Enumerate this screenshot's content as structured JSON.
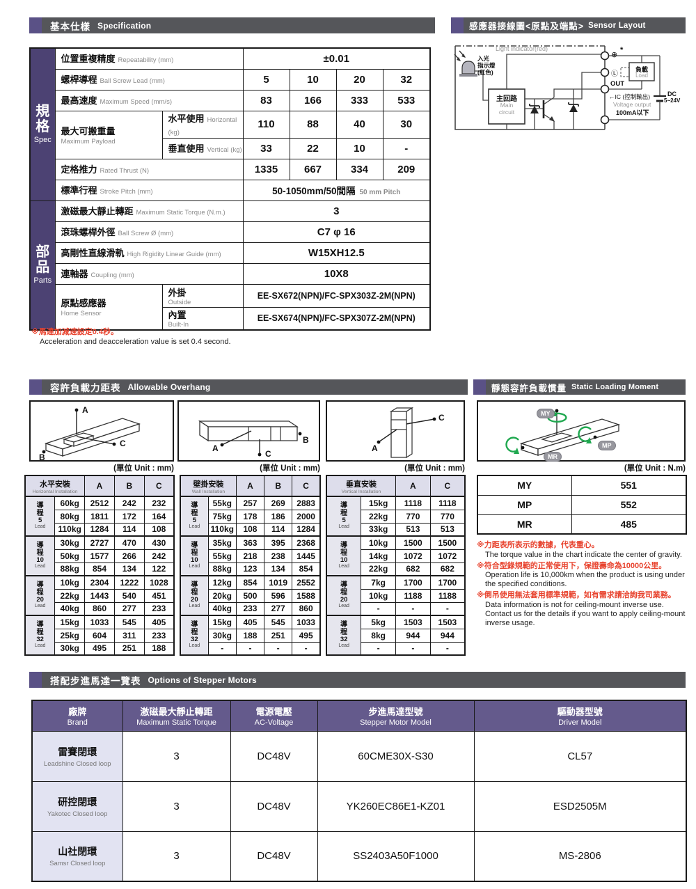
{
  "sections": {
    "spec": {
      "zh": "基本仕樣",
      "en": "Specification"
    },
    "sensor": {
      "zh": "感應器接線圖<原點及端點>",
      "en": "Sensor Layout"
    },
    "overhang": {
      "zh": "容許負載力距表",
      "en": "Allowable Overhang"
    },
    "moment": {
      "zh": "靜態容許負載慣量",
      "en": "Static Loading Moment"
    },
    "stepper": {
      "zh": "搭配步進馬達一覽表",
      "en": "Options of Stepper Motors"
    }
  },
  "spec_table": {
    "sidebar": [
      {
        "zh": "規格",
        "en": "Spec"
      },
      {
        "zh": "部品",
        "en": "Parts"
      }
    ],
    "repeatability": {
      "zh": "位置重複精度",
      "en": "Repeatability (mm)",
      "value": "±0.01"
    },
    "lead": {
      "zh": "螺桿導程",
      "en": "Ball Screw Lead (mm)",
      "values": [
        "5",
        "10",
        "20",
        "32"
      ]
    },
    "speed": {
      "zh": "最高速度",
      "en": "Maximum Speed (mm/s)",
      "values": [
        "83",
        "166",
        "333",
        "533"
      ]
    },
    "payload": {
      "zh": "最大可搬重量",
      "en": "Maximum Payload",
      "horizontal": {
        "zh": "水平使用",
        "en": "Horizontal (kg)",
        "values": [
          "110",
          "88",
          "40",
          "30"
        ]
      },
      "vertical": {
        "zh": "垂直使用",
        "en": "Vertical (kg)",
        "values": [
          "33",
          "22",
          "10",
          "-"
        ]
      }
    },
    "thrust": {
      "zh": "定格推力",
      "en": "Rated Thrust (N)",
      "values": [
        "1335",
        "667",
        "334",
        "209"
      ]
    },
    "stroke": {
      "zh": "標準行程",
      "en": "Stroke Pitch (mm)",
      "value": "50-1050mm/50間隔",
      "value_en": "50 mm Pitch"
    },
    "torque": {
      "zh": "激磁最大靜止轉距",
      "en": "Maximum Static Torque (N.m.)",
      "value": "3"
    },
    "screw_od": {
      "zh": "滾珠螺桿外徑",
      "en": "Ball Screw Ø (mm)",
      "value": "C7 φ 16"
    },
    "guide": {
      "zh": "高剛性直線滑軌",
      "en": "High Rigidity Linear Guide (mm)",
      "value": "W15XH12.5"
    },
    "coupling": {
      "zh": "連軸器",
      "en": "Coupling (mm)",
      "value": "10X8"
    },
    "home_sensor": {
      "zh": "原點感應器",
      "en": "Home Sensor",
      "outside": {
        "zh": "外掛",
        "en": "Outside",
        "value": "EE-SX672(NPN)/FC-SPX303Z-2M(NPN)"
      },
      "builtin": {
        "zh": "內置",
        "en": "Built-In",
        "value": "EE-SX674(NPN)/FC-SPX307Z-2M(NPN)"
      }
    },
    "note": {
      "zh": "※馬達加減速設定0.4秒。",
      "en": "Acceleration and deacceleration value is set 0.4 second."
    }
  },
  "sensor_diagram": {
    "light_indicator": "Light indicator(red)",
    "input_lines": [
      "入光",
      "指示燈",
      "(紅色)"
    ],
    "main_circuit_zh": "主回路",
    "main_circuit_en1": "Main",
    "main_circuit_en2": "circuit",
    "load_zh": "負載",
    "load_en": "Load",
    "terminal_plus": "⊕",
    "terminal_star": "*",
    "terminal_l": "Ⓛ",
    "terminal_out": "OUT",
    "terminal_minus": "⊖",
    "ic_label": "←IC (控制輸出)",
    "voltage_output": "Voltage output",
    "current_limit": "100mA以下",
    "dc_label": "DC",
    "dc_voltage": "5~24V"
  },
  "overhang": {
    "unit_mm": "(單位 Unit : mm)",
    "lead_zh": "導程",
    "lead_en": "Lead",
    "tables": [
      {
        "title_zh": "水平安裝",
        "title_en": "Horizontal Installation",
        "cols": [
          "A",
          "B",
          "C"
        ],
        "groups": [
          {
            "lead": "5",
            "rows": [
              [
                "60kg",
                "2512",
                "242",
                "232"
              ],
              [
                "80kg",
                "1811",
                "172",
                "164"
              ],
              [
                "110kg",
                "1284",
                "114",
                "108"
              ]
            ]
          },
          {
            "lead": "10",
            "rows": [
              [
                "30kg",
                "2727",
                "470",
                "430"
              ],
              [
                "50kg",
                "1577",
                "266",
                "242"
              ],
              [
                "88kg",
                "854",
                "134",
                "122"
              ]
            ]
          },
          {
            "lead": "20",
            "rows": [
              [
                "10kg",
                "2304",
                "1222",
                "1028"
              ],
              [
                "22kg",
                "1443",
                "540",
                "451"
              ],
              [
                "40kg",
                "860",
                "277",
                "233"
              ]
            ]
          },
          {
            "lead": "32",
            "rows": [
              [
                "15kg",
                "1033",
                "545",
                "405"
              ],
              [
                "25kg",
                "604",
                "311",
                "233"
              ],
              [
                "30kg",
                "495",
                "251",
                "188"
              ]
            ]
          }
        ]
      },
      {
        "title_zh": "壁掛安裝",
        "title_en": "Wall Installation",
        "cols": [
          "A",
          "B",
          "C"
        ],
        "groups": [
          {
            "lead": "5",
            "rows": [
              [
                "55kg",
                "257",
                "269",
                "2883"
              ],
              [
                "75kg",
                "178",
                "186",
                "2000"
              ],
              [
                "110kg",
                "108",
                "114",
                "1284"
              ]
            ]
          },
          {
            "lead": "10",
            "rows": [
              [
                "35kg",
                "363",
                "395",
                "2368"
              ],
              [
                "55kg",
                "218",
                "238",
                "1445"
              ],
              [
                "88kg",
                "123",
                "134",
                "854"
              ]
            ]
          },
          {
            "lead": "20",
            "rows": [
              [
                "12kg",
                "854",
                "1019",
                "2552"
              ],
              [
                "20kg",
                "500",
                "596",
                "1588"
              ],
              [
                "40kg",
                "233",
                "277",
                "860"
              ]
            ]
          },
          {
            "lead": "32",
            "rows": [
              [
                "15kg",
                "405",
                "545",
                "1033"
              ],
              [
                "30kg",
                "188",
                "251",
                "495"
              ],
              [
                "-",
                "-",
                "-",
                "-"
              ]
            ]
          }
        ]
      },
      {
        "title_zh": "垂直安裝",
        "title_en": "Vertical Installation",
        "cols": [
          "A",
          "C"
        ],
        "groups": [
          {
            "lead": "5",
            "rows": [
              [
                "15kg",
                "1118",
                "1118"
              ],
              [
                "22kg",
                "770",
                "770"
              ],
              [
                "33kg",
                "513",
                "513"
              ]
            ]
          },
          {
            "lead": "10",
            "rows": [
              [
                "10kg",
                "1500",
                "1500"
              ],
              [
                "14kg",
                "1072",
                "1072"
              ],
              [
                "22kg",
                "682",
                "682"
              ]
            ]
          },
          {
            "lead": "20",
            "rows": [
              [
                "7kg",
                "1700",
                "1700"
              ],
              [
                "10kg",
                "1188",
                "1188"
              ],
              [
                "-",
                "-",
                "-"
              ]
            ]
          },
          {
            "lead": "32",
            "rows": [
              [
                "5kg",
                "1503",
                "1503"
              ],
              [
                "8kg",
                "944",
                "944"
              ],
              [
                "-",
                "-",
                "-"
              ]
            ]
          }
        ]
      }
    ]
  },
  "moment": {
    "unit": "(單位 Unit : N.m)",
    "rows": [
      {
        "label": "MY",
        "value": "551"
      },
      {
        "label": "MP",
        "value": "552"
      },
      {
        "label": "MR",
        "value": "485"
      }
    ],
    "badges": [
      "MY",
      "MP",
      "MR"
    ],
    "notes": [
      {
        "zh": "※力距表所表示的數據，代表重心。",
        "en": "The torque value in the chart indicate the center of gravity."
      },
      {
        "zh": "※符合型錄規範的正常使用下，保證壽命為10000公里。",
        "en": "Operation life is 10,000km when the product is using under the specified conditions."
      },
      {
        "zh": "※倒吊使用無法套用標準規範，如有需求請洽詢我司業務。",
        "en": "Data information is not for ceiling-mount inverse use. Contact us for the details if you want to apply ceiling-mount inverse usage."
      }
    ]
  },
  "stepper": {
    "headers": [
      {
        "zh": "廠牌",
        "en": "Brand"
      },
      {
        "zh": "激磁最大靜止轉距",
        "en": "Maximum Static Torque"
      },
      {
        "zh": "電源電壓",
        "en": "AC-Voltage"
      },
      {
        "zh": "步進馬達型號",
        "en": "Stepper Motor Model"
      },
      {
        "zh": "驅動器型號",
        "en": "Driver Model"
      }
    ],
    "rows": [
      {
        "brand_zh": "雷賽閉環",
        "brand_en": "Leadshine Closed loop",
        "torque": "3",
        "voltage": "DC48V",
        "motor": "60CME30X-S30",
        "driver": "CL57"
      },
      {
        "brand_zh": "研控閉環",
        "brand_en": "Yakotec Closed loop",
        "torque": "3",
        "voltage": "DC48V",
        "motor": "YK260EC86E1-KZ01",
        "driver": "ESD2505M"
      },
      {
        "brand_zh": "山社閉環",
        "brand_en": "Samsr Closed loop",
        "torque": "3",
        "voltage": "DC48V",
        "motor": "SS2403A50F1000",
        "driver": "MS-2806"
      }
    ]
  },
  "diagram_labels": {
    "a": "A",
    "b": "B",
    "c": "C"
  },
  "colors": {
    "bar_gray": "#55565A",
    "accent_purple": "#5A5186",
    "sidebar_purple": "#4C4273",
    "header_purple": "#645A8C",
    "lavender": "#E2E3F2",
    "header_lavender": "#DDDDEB",
    "note_red": "#E8432E",
    "green": "#1FA84F"
  }
}
